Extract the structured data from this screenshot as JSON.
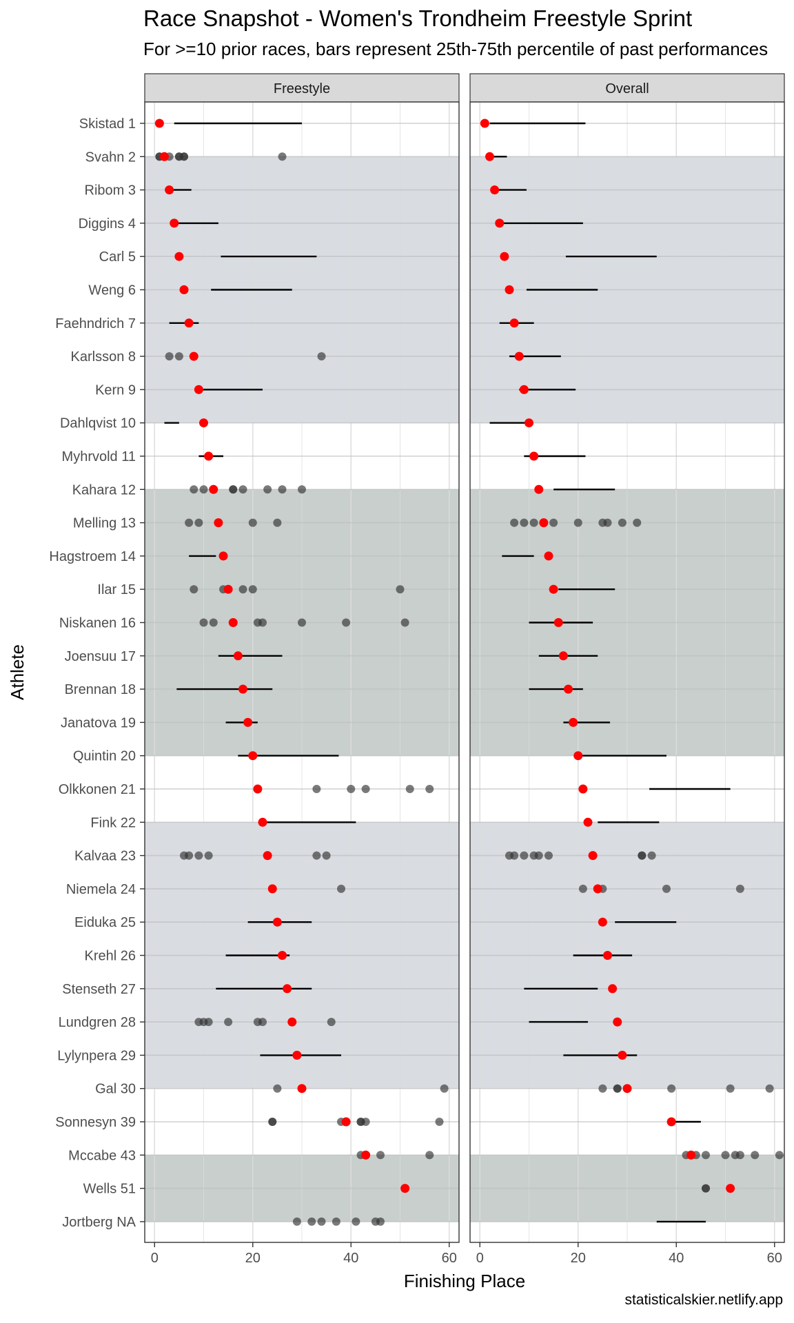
{
  "title": "Race Snapshot -  Women's Trondheim Freestyle Sprint",
  "subtitle": "For >=10 prior races, bars represent 25th-75th percentile of past performances",
  "caption": "statisticalskier.netlify.app",
  "colors": {
    "current": "#ff0000",
    "past": "#333333",
    "band_light": "#d9dce1",
    "band_dark": "#c8cfcd",
    "strip_bg": "#d9d9d9",
    "grid": "#ebebeb"
  },
  "chart_data": {
    "type": "scatter",
    "xlabel": "Finishing Place",
    "ylabel": "Athlete",
    "xlim": [
      -2,
      62
    ],
    "x_ticks": [
      0,
      20,
      40,
      60
    ],
    "panels": [
      "Freestyle",
      "Overall"
    ],
    "bands": [
      {
        "from": 2,
        "to": 10,
        "shade": "light"
      },
      {
        "from": 12,
        "to": 20,
        "shade": "dark"
      },
      {
        "from": 22,
        "to": 30,
        "shade": "light"
      },
      {
        "from": 32,
        "to": 34,
        "shade": "dark"
      }
    ],
    "athletes": [
      {
        "label": "Skistad 1",
        "current": 1,
        "freestyle": {
          "bar": [
            4,
            30
          ],
          "points": []
        },
        "overall": {
          "bar": [
            2,
            21.5
          ],
          "points": []
        }
      },
      {
        "label": "Svahn 2",
        "current": 2,
        "freestyle": {
          "bar": null,
          "points": [
            1,
            1,
            2,
            3,
            5,
            5,
            6,
            6,
            26
          ]
        },
        "overall": {
          "bar": [
            2,
            5.5
          ],
          "points": []
        }
      },
      {
        "label": "Ribom 3",
        "current": 3,
        "freestyle": {
          "bar": [
            3,
            7.5
          ],
          "points": []
        },
        "overall": {
          "bar": [
            2.5,
            9.5
          ],
          "points": []
        }
      },
      {
        "label": "Diggins 4",
        "current": 4,
        "freestyle": {
          "bar": [
            3.5,
            13
          ],
          "points": []
        },
        "overall": {
          "bar": [
            4,
            21
          ],
          "points": []
        }
      },
      {
        "label": "Carl 5",
        "current": 5,
        "freestyle": {
          "bar": [
            13.5,
            33
          ],
          "points": []
        },
        "overall": {
          "bar": [
            17.5,
            36
          ],
          "points": []
        }
      },
      {
        "label": "Weng 6",
        "current": 6,
        "freestyle": {
          "bar": [
            11.5,
            28
          ],
          "points": []
        },
        "overall": {
          "bar": [
            9.5,
            24
          ],
          "points": []
        }
      },
      {
        "label": "Faehndrich 7",
        "current": 7,
        "freestyle": {
          "bar": [
            3,
            9
          ],
          "points": []
        },
        "overall": {
          "bar": [
            4,
            11
          ],
          "points": []
        }
      },
      {
        "label": "Karlsson 8",
        "current": 8,
        "freestyle": {
          "bar": null,
          "points": [
            3,
            5,
            8,
            34
          ]
        },
        "overall": {
          "bar": [
            6,
            16.5
          ],
          "points": []
        }
      },
      {
        "label": "Kern 9",
        "current": 9,
        "freestyle": {
          "bar": [
            9,
            22
          ],
          "points": []
        },
        "overall": {
          "bar": [
            8,
            19.5
          ],
          "points": []
        }
      },
      {
        "label": "Dahlqvist 10",
        "current": 10,
        "freestyle": {
          "bar": [
            2,
            5
          ],
          "points": []
        },
        "overall": {
          "bar": [
            2,
            10
          ],
          "points": []
        }
      },
      {
        "label": "Myhrvold 11",
        "current": 11,
        "freestyle": {
          "bar": [
            9,
            14
          ],
          "points": []
        },
        "overall": {
          "bar": [
            9,
            21.5
          ],
          "points": []
        }
      },
      {
        "label": "Kahara 12",
        "current": 12,
        "freestyle": {
          "bar": null,
          "points": [
            8,
            10,
            12,
            16,
            16,
            18,
            23,
            26,
            30
          ]
        },
        "overall": {
          "bar": [
            15,
            27.5
          ],
          "points": []
        }
      },
      {
        "label": "Melling 13",
        "current": 13,
        "freestyle": {
          "bar": null,
          "points": [
            7,
            9,
            13,
            20,
            25
          ]
        },
        "overall": {
          "bar": null,
          "points": [
            7,
            9,
            11,
            13,
            15,
            20,
            25,
            26,
            29,
            32
          ]
        }
      },
      {
        "label": "Hagstroem 14",
        "current": 14,
        "freestyle": {
          "bar": [
            7,
            12.5
          ],
          "points": []
        },
        "overall": {
          "bar": [
            4.5,
            11
          ],
          "points": []
        }
      },
      {
        "label": "Ilar 15",
        "current": 15,
        "freestyle": {
          "bar": null,
          "points": [
            8,
            14,
            15,
            18,
            20,
            50
          ]
        },
        "overall": {
          "bar": [
            16,
            27.5
          ],
          "points": []
        }
      },
      {
        "label": "Niskanen 16",
        "current": 16,
        "freestyle": {
          "bar": null,
          "points": [
            10,
            12,
            16,
            21,
            22,
            30,
            39,
            51
          ]
        },
        "overall": {
          "bar": [
            10,
            23
          ],
          "points": []
        }
      },
      {
        "label": "Joensuu 17",
        "current": 17,
        "freestyle": {
          "bar": [
            13,
            26
          ],
          "points": []
        },
        "overall": {
          "bar": [
            12,
            24
          ],
          "points": []
        }
      },
      {
        "label": "Brennan 18",
        "current": 18,
        "freestyle": {
          "bar": [
            4.5,
            24
          ],
          "points": []
        },
        "overall": {
          "bar": [
            10,
            21
          ],
          "points": []
        }
      },
      {
        "label": "Janatova 19",
        "current": 19,
        "freestyle": {
          "bar": [
            14.5,
            21
          ],
          "points": []
        },
        "overall": {
          "bar": [
            17,
            26.5
          ],
          "points": []
        }
      },
      {
        "label": "Quintin 20",
        "current": 20,
        "freestyle": {
          "bar": [
            17,
            37.5
          ],
          "points": []
        },
        "overall": {
          "bar": [
            20,
            38
          ],
          "points": []
        }
      },
      {
        "label": "Olkkonen 21",
        "current": 21,
        "freestyle": {
          "bar": null,
          "points": [
            21,
            33,
            40,
            43,
            52,
            56
          ]
        },
        "overall": {
          "bar": [
            34.5,
            51
          ],
          "points": []
        }
      },
      {
        "label": "Fink 22",
        "current": 22,
        "freestyle": {
          "bar": [
            21.5,
            41
          ],
          "points": []
        },
        "overall": {
          "bar": [
            24,
            36.5
          ],
          "points": []
        }
      },
      {
        "label": "Kalvaa 23",
        "current": 23,
        "freestyle": {
          "bar": null,
          "points": [
            6,
            7,
            9,
            11,
            23,
            33,
            35
          ]
        },
        "overall": {
          "bar": null,
          "points": [
            6,
            7,
            9,
            11,
            12,
            14,
            23,
            33,
            33,
            35
          ]
        }
      },
      {
        "label": "Niemela 24",
        "current": 24,
        "freestyle": {
          "bar": null,
          "points": [
            24,
            38
          ]
        },
        "overall": {
          "bar": null,
          "points": [
            21,
            24,
            25,
            38,
            53
          ]
        }
      },
      {
        "label": "Eiduka 25",
        "current": 25,
        "freestyle": {
          "bar": [
            19,
            32
          ],
          "points": []
        },
        "overall": {
          "bar": [
            27.5,
            40
          ],
          "points": []
        }
      },
      {
        "label": "Krehl 26",
        "current": 26,
        "freestyle": {
          "bar": [
            14.5,
            27.5
          ],
          "points": []
        },
        "overall": {
          "bar": [
            19,
            31
          ],
          "points": []
        }
      },
      {
        "label": "Stenseth 27",
        "current": 27,
        "freestyle": {
          "bar": [
            12.5,
            32
          ],
          "points": []
        },
        "overall": {
          "bar": [
            9,
            24
          ],
          "points": []
        }
      },
      {
        "label": "Lundgren 28",
        "current": 28,
        "freestyle": {
          "bar": null,
          "points": [
            9,
            10,
            11,
            15,
            21,
            22,
            28,
            36
          ]
        },
        "overall": {
          "bar": [
            10,
            22
          ],
          "points": []
        }
      },
      {
        "label": "Lylynpera 29",
        "current": 29,
        "freestyle": {
          "bar": [
            21.5,
            38
          ],
          "points": []
        },
        "overall": {
          "bar": [
            17,
            32
          ],
          "points": []
        }
      },
      {
        "label": "Gal 30",
        "current": 30,
        "freestyle": {
          "bar": null,
          "points": [
            25,
            30,
            59
          ]
        },
        "overall": {
          "bar": null,
          "points": [
            25,
            28,
            28,
            30,
            39,
            51,
            59
          ]
        }
      },
      {
        "label": "Sonnesyn 39",
        "current": 39,
        "freestyle": {
          "bar": null,
          "points": [
            24,
            24,
            38,
            39,
            42,
            42,
            43,
            58
          ]
        },
        "overall": {
          "bar": [
            39,
            45
          ],
          "points": []
        }
      },
      {
        "label": "Mccabe 43",
        "current": 43,
        "freestyle": {
          "bar": null,
          "points": [
            42,
            43,
            46,
            56
          ]
        },
        "overall": {
          "bar": null,
          "points": [
            42,
            43,
            44,
            46,
            50,
            52,
            53,
            56,
            61
          ]
        }
      },
      {
        "label": "Wells 51",
        "current": 51,
        "freestyle": {
          "bar": null,
          "points": []
        },
        "overall": {
          "bar": null,
          "points": [
            46,
            46,
            51
          ]
        }
      },
      {
        "label": "Jortberg NA",
        "current": null,
        "freestyle": {
          "bar": null,
          "points": [
            29,
            32,
            34,
            37,
            41,
            45,
            46
          ]
        },
        "overall": {
          "bar": [
            36,
            46
          ],
          "points": []
        }
      }
    ]
  }
}
